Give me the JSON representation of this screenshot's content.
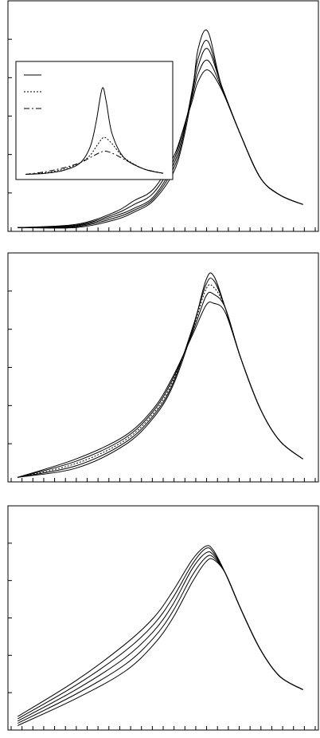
{
  "chart_data": [
    {
      "type": "line",
      "title": "",
      "xlabel": "",
      "ylabel": "",
      "x_ticks": 29,
      "y_ticks": 6,
      "series": [
        {
          "values": [
            [
              0.5,
              0.1
            ],
            [
              3.5,
              0.1
            ],
            [
              5.5,
              0.3
            ],
            [
              6.5,
              0.5
            ],
            [
              7.5,
              0.8
            ],
            [
              8.5,
              1.5
            ],
            [
              9.0,
              2.3
            ],
            [
              9.5,
              3.6
            ],
            [
              9.8,
              4.75
            ],
            [
              10.3,
              5.2
            ],
            [
              11.0,
              3.8
            ],
            [
              12.0,
              2.5
            ],
            [
              13.0,
              1.4
            ],
            [
              14.0,
              0.95
            ],
            [
              15.2,
              0.7
            ]
          ]
        },
        {
          "values": [
            [
              0.5,
              0.1
            ],
            [
              3.5,
              0.12
            ],
            [
              5.5,
              0.35
            ],
            [
              6.5,
              0.55
            ],
            [
              7.5,
              0.85
            ],
            [
              8.5,
              1.6
            ],
            [
              9.0,
              2.4
            ],
            [
              9.5,
              3.7
            ],
            [
              9.8,
              4.5
            ],
            [
              10.3,
              4.95
            ],
            [
              11.0,
              3.8
            ],
            [
              12.0,
              2.5
            ],
            [
              13.0,
              1.4
            ],
            [
              14.0,
              0.95
            ],
            [
              15.2,
              0.7
            ]
          ]
        },
        {
          "values": [
            [
              0.5,
              0.1
            ],
            [
              3.5,
              0.14
            ],
            [
              5.5,
              0.4
            ],
            [
              6.5,
              0.6
            ],
            [
              7.5,
              0.9
            ],
            [
              8.5,
              1.7
            ],
            [
              9.0,
              2.5
            ],
            [
              9.5,
              3.6
            ],
            [
              9.8,
              4.3
            ],
            [
              10.3,
              4.75
            ],
            [
              11.0,
              3.8
            ],
            [
              12.0,
              2.5
            ],
            [
              13.0,
              1.4
            ],
            [
              14.0,
              0.95
            ],
            [
              15.2,
              0.7
            ]
          ]
        },
        {
          "values": [
            [
              0.5,
              0.1
            ],
            [
              3.5,
              0.16
            ],
            [
              5.5,
              0.45
            ],
            [
              6.5,
              0.7
            ],
            [
              7.5,
              1.0
            ],
            [
              8.5,
              1.8
            ],
            [
              9.0,
              2.6
            ],
            [
              9.5,
              3.5
            ],
            [
              9.8,
              4.1
            ],
            [
              10.3,
              4.45
            ],
            [
              11.0,
              3.75
            ],
            [
              12.0,
              2.5
            ],
            [
              13.0,
              1.4
            ],
            [
              14.0,
              0.95
            ],
            [
              15.2,
              0.7
            ]
          ]
        },
        {
          "values": [
            [
              0.5,
              0.1
            ],
            [
              3.5,
              0.18
            ],
            [
              5.5,
              0.5
            ],
            [
              6.5,
              0.8
            ],
            [
              7.5,
              1.1
            ],
            [
              8.5,
              1.9
            ],
            [
              9.0,
              2.6
            ],
            [
              9.5,
              3.4
            ],
            [
              9.8,
              3.9
            ],
            [
              10.3,
              4.2
            ],
            [
              11.0,
              3.7
            ],
            [
              12.0,
              2.5
            ],
            [
              13.0,
              1.4
            ],
            [
              14.0,
              0.95
            ],
            [
              15.2,
              0.7
            ]
          ]
        }
      ],
      "inset": {
        "type": "line",
        "series": [
          {
            "style": "solid",
            "values": [
              [
                0,
                0.08
              ],
              [
                1,
                0.12
              ],
              [
                2,
                0.25
              ],
              [
                2.8,
                0.55
              ],
              [
                3.3,
                1.2
              ],
              [
                3.6,
                2.2
              ],
              [
                3.9,
                3.5
              ],
              [
                4.1,
                3.0
              ],
              [
                4.4,
                1.7
              ],
              [
                5.0,
                0.75
              ],
              [
                6.0,
                0.3
              ],
              [
                7.0,
                0.12
              ]
            ]
          },
          {
            "style": "dotted",
            "values": [
              [
                0,
                0.08
              ],
              [
                1,
                0.14
              ],
              [
                2,
                0.3
              ],
              [
                2.8,
                0.55
              ],
              [
                3.3,
                0.85
              ],
              [
                3.7,
                1.3
              ],
              [
                4.0,
                1.55
              ],
              [
                4.4,
                1.3
              ],
              [
                5.0,
                0.75
              ],
              [
                6.0,
                0.3
              ],
              [
                7.0,
                0.12
              ]
            ]
          },
          {
            "style": "dashdot",
            "values": [
              [
                0,
                0.08
              ],
              [
                1,
                0.18
              ],
              [
                2,
                0.35
              ],
              [
                2.8,
                0.55
              ],
              [
                3.3,
                0.75
              ],
              [
                3.8,
                0.95
              ],
              [
                4.1,
                1.0
              ],
              [
                4.6,
                0.85
              ],
              [
                5.2,
                0.6
              ],
              [
                6.0,
                0.3
              ],
              [
                7.0,
                0.12
              ]
            ]
          }
        ],
        "xlim": [
          0,
          7
        ],
        "ylim": [
          0,
          4
        ]
      },
      "xlim": [
        0,
        16
      ],
      "ylim": [
        0,
        6
      ]
    },
    {
      "type": "line",
      "title": "",
      "xlabel": "",
      "ylabel": "",
      "x_ticks": 29,
      "y_ticks": 6,
      "series": [
        {
          "style": "solid",
          "values": [
            [
              0.5,
              0.1
            ],
            [
              3.5,
              0.3
            ],
            [
              6.0,
              0.8
            ],
            [
              7.5,
              1.4
            ],
            [
              8.5,
              2.1
            ],
            [
              9.5,
              3.3
            ],
            [
              10.2,
              4.4
            ],
            [
              10.6,
              4.5
            ],
            [
              11.2,
              3.8
            ],
            [
              12.0,
              2.7
            ],
            [
              13.0,
              1.6
            ],
            [
              14.0,
              0.9
            ],
            [
              15.2,
              0.5
            ]
          ]
        },
        {
          "style": "solid",
          "values": [
            [
              0.5,
              0.1
            ],
            [
              3.5,
              0.35
            ],
            [
              6.0,
              0.85
            ],
            [
              7.5,
              1.45
            ],
            [
              8.5,
              2.15
            ],
            [
              9.5,
              3.35
            ],
            [
              10.2,
              4.3
            ],
            [
              10.6,
              4.4
            ],
            [
              11.2,
              3.8
            ],
            [
              12.0,
              2.7
            ],
            [
              13.0,
              1.6
            ],
            [
              14.0,
              0.9
            ],
            [
              15.2,
              0.5
            ]
          ]
        },
        {
          "style": "dotted",
          "values": [
            [
              0.5,
              0.1
            ],
            [
              3.5,
              0.4
            ],
            [
              6.0,
              0.9
            ],
            [
              7.5,
              1.5
            ],
            [
              8.5,
              2.2
            ],
            [
              9.5,
              3.3
            ],
            [
              10.2,
              4.2
            ],
            [
              10.6,
              4.25
            ],
            [
              11.2,
              3.8
            ],
            [
              12.0,
              2.7
            ],
            [
              13.0,
              1.6
            ],
            [
              14.0,
              0.9
            ],
            [
              15.2,
              0.5
            ]
          ]
        },
        {
          "style": "solid",
          "values": [
            [
              0.5,
              0.1
            ],
            [
              3.5,
              0.45
            ],
            [
              6.0,
              0.95
            ],
            [
              7.5,
              1.55
            ],
            [
              8.5,
              2.25
            ],
            [
              9.5,
              3.25
            ],
            [
              10.2,
              4.05
            ],
            [
              10.6,
              4.1
            ],
            [
              11.2,
              3.8
            ],
            [
              12.0,
              2.7
            ],
            [
              13.0,
              1.6
            ],
            [
              14.0,
              0.9
            ],
            [
              15.2,
              0.5
            ]
          ]
        },
        {
          "style": "solid",
          "values": [
            [
              0.5,
              0.1
            ],
            [
              3.5,
              0.5
            ],
            [
              6.0,
              1.0
            ],
            [
              7.5,
              1.6
            ],
            [
              8.5,
              2.3
            ],
            [
              9.5,
              3.2
            ],
            [
              10.2,
              3.85
            ],
            [
              10.6,
              3.9
            ],
            [
              11.2,
              3.7
            ],
            [
              12.0,
              2.7
            ],
            [
              13.0,
              1.6
            ],
            [
              14.0,
              0.9
            ],
            [
              15.2,
              0.5
            ]
          ]
        }
      ],
      "xlim": [
        0,
        16
      ],
      "ylim": [
        0,
        5
      ]
    },
    {
      "type": "line",
      "title": "",
      "xlabel": "",
      "ylabel": "",
      "x_ticks": 29,
      "y_ticks": 6,
      "series": [
        {
          "style": "solid",
          "values": [
            [
              0.5,
              0.3
            ],
            [
              3.5,
              1.1
            ],
            [
              6.0,
              1.9
            ],
            [
              7.5,
              2.5
            ],
            [
              8.5,
              3.1
            ],
            [
              9.5,
              3.8
            ],
            [
              10.2,
              4.1
            ],
            [
              10.6,
              4.0
            ],
            [
              11.2,
              3.5
            ],
            [
              12.0,
              2.7
            ],
            [
              13.0,
              1.8
            ],
            [
              14.0,
              1.2
            ],
            [
              15.2,
              0.9
            ]
          ]
        },
        {
          "style": "solid",
          "values": [
            [
              0.5,
              0.25
            ],
            [
              3.5,
              1.0
            ],
            [
              6.0,
              1.75
            ],
            [
              7.5,
              2.35
            ],
            [
              8.5,
              2.95
            ],
            [
              9.5,
              3.7
            ],
            [
              10.2,
              4.05
            ],
            [
              10.6,
              3.95
            ],
            [
              11.2,
              3.5
            ],
            [
              12.0,
              2.7
            ],
            [
              13.0,
              1.8
            ],
            [
              14.0,
              1.2
            ],
            [
              15.2,
              0.9
            ]
          ]
        },
        {
          "style": "solid",
          "values": [
            [
              0.5,
              0.2
            ],
            [
              3.5,
              0.9
            ],
            [
              6.0,
              1.6
            ],
            [
              7.5,
              2.2
            ],
            [
              8.5,
              2.8
            ],
            [
              9.5,
              3.6
            ],
            [
              10.2,
              3.95
            ],
            [
              10.6,
              3.9
            ],
            [
              11.2,
              3.5
            ],
            [
              12.0,
              2.7
            ],
            [
              13.0,
              1.8
            ],
            [
              14.0,
              1.2
            ],
            [
              15.2,
              0.9
            ]
          ]
        },
        {
          "style": "solid",
          "values": [
            [
              0.5,
              0.15
            ],
            [
              3.5,
              0.8
            ],
            [
              6.0,
              1.45
            ],
            [
              7.5,
              2.05
            ],
            [
              8.5,
              2.65
            ],
            [
              9.5,
              3.45
            ],
            [
              10.2,
              3.85
            ],
            [
              10.6,
              3.85
            ],
            [
              11.2,
              3.5
            ],
            [
              12.0,
              2.7
            ],
            [
              13.0,
              1.8
            ],
            [
              14.0,
              1.2
            ],
            [
              15.2,
              0.9
            ]
          ]
        },
        {
          "style": "solid",
          "values": [
            [
              0.5,
              0.1
            ],
            [
              3.5,
              0.7
            ],
            [
              6.0,
              1.3
            ],
            [
              7.5,
              1.9
            ],
            [
              8.5,
              2.5
            ],
            [
              9.5,
              3.3
            ],
            [
              10.2,
              3.75
            ],
            [
              10.6,
              3.8
            ],
            [
              11.2,
              3.5
            ],
            [
              12.0,
              2.7
            ],
            [
              13.0,
              1.8
            ],
            [
              14.0,
              1.2
            ],
            [
              15.2,
              0.9
            ]
          ]
        }
      ],
      "xlim": [
        0,
        16
      ],
      "ylim": [
        0,
        5
      ]
    }
  ]
}
